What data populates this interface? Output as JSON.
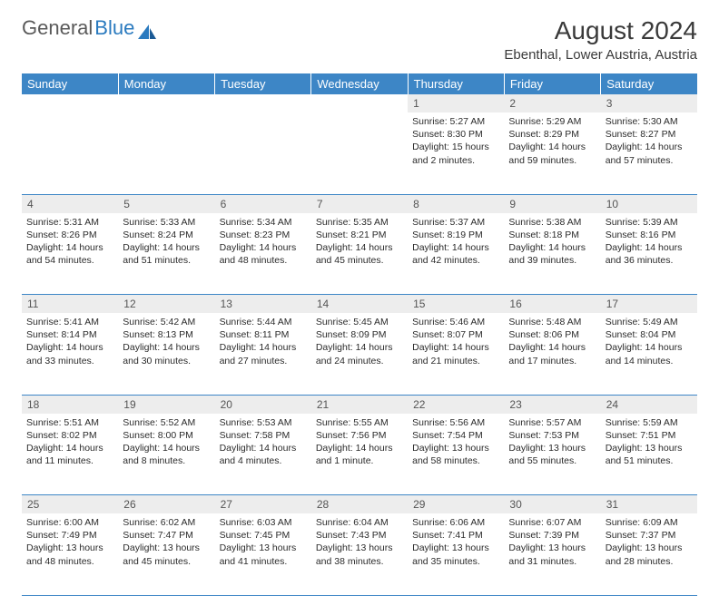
{
  "logo": {
    "part1": "General",
    "part2": "Blue"
  },
  "title": "August 2024",
  "location": "Ebenthal, Lower Austria, Austria",
  "colors": {
    "header_bg": "#3d86c6",
    "header_text": "#ffffff",
    "daynum_bg": "#ededed",
    "border": "#3d86c6",
    "logo_gray": "#5a5a5a",
    "logo_blue": "#2a7abf"
  },
  "day_headers": [
    "Sunday",
    "Monday",
    "Tuesday",
    "Wednesday",
    "Thursday",
    "Friday",
    "Saturday"
  ],
  "weeks": [
    {
      "days": [
        null,
        null,
        null,
        null,
        {
          "num": "1",
          "sunrise": "Sunrise: 5:27 AM",
          "sunset": "Sunset: 8:30 PM",
          "daylight": "Daylight: 15 hours and 2 minutes."
        },
        {
          "num": "2",
          "sunrise": "Sunrise: 5:29 AM",
          "sunset": "Sunset: 8:29 PM",
          "daylight": "Daylight: 14 hours and 59 minutes."
        },
        {
          "num": "3",
          "sunrise": "Sunrise: 5:30 AM",
          "sunset": "Sunset: 8:27 PM",
          "daylight": "Daylight: 14 hours and 57 minutes."
        }
      ]
    },
    {
      "days": [
        {
          "num": "4",
          "sunrise": "Sunrise: 5:31 AM",
          "sunset": "Sunset: 8:26 PM",
          "daylight": "Daylight: 14 hours and 54 minutes."
        },
        {
          "num": "5",
          "sunrise": "Sunrise: 5:33 AM",
          "sunset": "Sunset: 8:24 PM",
          "daylight": "Daylight: 14 hours and 51 minutes."
        },
        {
          "num": "6",
          "sunrise": "Sunrise: 5:34 AM",
          "sunset": "Sunset: 8:23 PM",
          "daylight": "Daylight: 14 hours and 48 minutes."
        },
        {
          "num": "7",
          "sunrise": "Sunrise: 5:35 AM",
          "sunset": "Sunset: 8:21 PM",
          "daylight": "Daylight: 14 hours and 45 minutes."
        },
        {
          "num": "8",
          "sunrise": "Sunrise: 5:37 AM",
          "sunset": "Sunset: 8:19 PM",
          "daylight": "Daylight: 14 hours and 42 minutes."
        },
        {
          "num": "9",
          "sunrise": "Sunrise: 5:38 AM",
          "sunset": "Sunset: 8:18 PM",
          "daylight": "Daylight: 14 hours and 39 minutes."
        },
        {
          "num": "10",
          "sunrise": "Sunrise: 5:39 AM",
          "sunset": "Sunset: 8:16 PM",
          "daylight": "Daylight: 14 hours and 36 minutes."
        }
      ]
    },
    {
      "days": [
        {
          "num": "11",
          "sunrise": "Sunrise: 5:41 AM",
          "sunset": "Sunset: 8:14 PM",
          "daylight": "Daylight: 14 hours and 33 minutes."
        },
        {
          "num": "12",
          "sunrise": "Sunrise: 5:42 AM",
          "sunset": "Sunset: 8:13 PM",
          "daylight": "Daylight: 14 hours and 30 minutes."
        },
        {
          "num": "13",
          "sunrise": "Sunrise: 5:44 AM",
          "sunset": "Sunset: 8:11 PM",
          "daylight": "Daylight: 14 hours and 27 minutes."
        },
        {
          "num": "14",
          "sunrise": "Sunrise: 5:45 AM",
          "sunset": "Sunset: 8:09 PM",
          "daylight": "Daylight: 14 hours and 24 minutes."
        },
        {
          "num": "15",
          "sunrise": "Sunrise: 5:46 AM",
          "sunset": "Sunset: 8:07 PM",
          "daylight": "Daylight: 14 hours and 21 minutes."
        },
        {
          "num": "16",
          "sunrise": "Sunrise: 5:48 AM",
          "sunset": "Sunset: 8:06 PM",
          "daylight": "Daylight: 14 hours and 17 minutes."
        },
        {
          "num": "17",
          "sunrise": "Sunrise: 5:49 AM",
          "sunset": "Sunset: 8:04 PM",
          "daylight": "Daylight: 14 hours and 14 minutes."
        }
      ]
    },
    {
      "days": [
        {
          "num": "18",
          "sunrise": "Sunrise: 5:51 AM",
          "sunset": "Sunset: 8:02 PM",
          "daylight": "Daylight: 14 hours and 11 minutes."
        },
        {
          "num": "19",
          "sunrise": "Sunrise: 5:52 AM",
          "sunset": "Sunset: 8:00 PM",
          "daylight": "Daylight: 14 hours and 8 minutes."
        },
        {
          "num": "20",
          "sunrise": "Sunrise: 5:53 AM",
          "sunset": "Sunset: 7:58 PM",
          "daylight": "Daylight: 14 hours and 4 minutes."
        },
        {
          "num": "21",
          "sunrise": "Sunrise: 5:55 AM",
          "sunset": "Sunset: 7:56 PM",
          "daylight": "Daylight: 14 hours and 1 minute."
        },
        {
          "num": "22",
          "sunrise": "Sunrise: 5:56 AM",
          "sunset": "Sunset: 7:54 PM",
          "daylight": "Daylight: 13 hours and 58 minutes."
        },
        {
          "num": "23",
          "sunrise": "Sunrise: 5:57 AM",
          "sunset": "Sunset: 7:53 PM",
          "daylight": "Daylight: 13 hours and 55 minutes."
        },
        {
          "num": "24",
          "sunrise": "Sunrise: 5:59 AM",
          "sunset": "Sunset: 7:51 PM",
          "daylight": "Daylight: 13 hours and 51 minutes."
        }
      ]
    },
    {
      "days": [
        {
          "num": "25",
          "sunrise": "Sunrise: 6:00 AM",
          "sunset": "Sunset: 7:49 PM",
          "daylight": "Daylight: 13 hours and 48 minutes."
        },
        {
          "num": "26",
          "sunrise": "Sunrise: 6:02 AM",
          "sunset": "Sunset: 7:47 PM",
          "daylight": "Daylight: 13 hours and 45 minutes."
        },
        {
          "num": "27",
          "sunrise": "Sunrise: 6:03 AM",
          "sunset": "Sunset: 7:45 PM",
          "daylight": "Daylight: 13 hours and 41 minutes."
        },
        {
          "num": "28",
          "sunrise": "Sunrise: 6:04 AM",
          "sunset": "Sunset: 7:43 PM",
          "daylight": "Daylight: 13 hours and 38 minutes."
        },
        {
          "num": "29",
          "sunrise": "Sunrise: 6:06 AM",
          "sunset": "Sunset: 7:41 PM",
          "daylight": "Daylight: 13 hours and 35 minutes."
        },
        {
          "num": "30",
          "sunrise": "Sunrise: 6:07 AM",
          "sunset": "Sunset: 7:39 PM",
          "daylight": "Daylight: 13 hours and 31 minutes."
        },
        {
          "num": "31",
          "sunrise": "Sunrise: 6:09 AM",
          "sunset": "Sunset: 7:37 PM",
          "daylight": "Daylight: 13 hours and 28 minutes."
        }
      ]
    }
  ]
}
